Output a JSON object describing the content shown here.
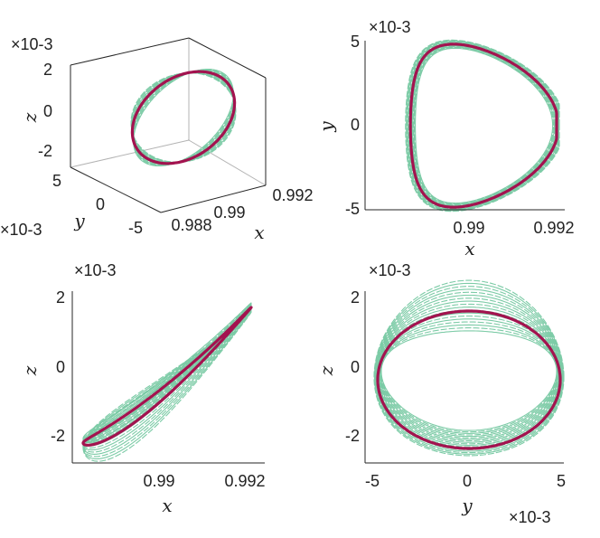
{
  "colors": {
    "background": "#ffffff",
    "axis": "#262626",
    "bundle": "#7ccba6",
    "periodic": "#a3134f"
  },
  "chart_data": [
    {
      "id": "xyz",
      "type": "line",
      "projection": "3d",
      "xlabel": "x",
      "ylabel": "y",
      "zlabel": "z",
      "xlim": [
        0.9875,
        0.9925
      ],
      "ylim": [
        -0.005,
        0.005
      ],
      "zlim": [
        -0.0025,
        0.0025
      ],
      "xticks": [
        0.988,
        0.99,
        0.992
      ],
      "xticklabels": [
        "0.988",
        "0.99",
        "0.992"
      ],
      "yticks": [
        -0.005,
        0,
        0.005
      ],
      "yticklabels": [
        "-5",
        "0",
        "5"
      ],
      "ymultiplier": "×10-3",
      "zticks": [
        -0.002,
        0,
        0.002
      ],
      "zticklabels": [
        "-2",
        "0",
        "2"
      ],
      "zmultiplier": "×10-3"
    },
    {
      "id": "xy",
      "type": "line",
      "xlabel": "x",
      "ylabel": "y",
      "xlim": [
        0.9885,
        0.9922
      ],
      "ylim": [
        -0.005,
        0.005
      ],
      "xticks": [
        0.99,
        0.992
      ],
      "xticklabels": [
        "0.99",
        "0.992"
      ],
      "yticks": [
        -0.005,
        0,
        0.005
      ],
      "yticklabels": [
        "-5",
        "0",
        "5"
      ],
      "ymultiplier": "×10-3"
    },
    {
      "id": "xz",
      "type": "line",
      "xlabel": "x",
      "ylabel": "z",
      "xlim": [
        0.9885,
        0.9922
      ],
      "ylim": [
        -0.0028,
        0.0022
      ],
      "xticks": [
        0.99,
        0.992
      ],
      "xticklabels": [
        "0.99",
        "0.992"
      ],
      "yticks": [
        -0.002,
        0,
        0.002
      ],
      "yticklabels": [
        "-2",
        "0",
        "2"
      ],
      "ymultiplier": "×10-3"
    },
    {
      "id": "yz",
      "type": "line",
      "xlabel": "y",
      "ylabel": "z",
      "xlim": [
        -0.0055,
        0.0052
      ],
      "ylim": [
        -0.0028,
        0.0022
      ],
      "xticks": [
        -0.005,
        0,
        0.005
      ],
      "xticklabels": [
        "-5",
        "0",
        "5"
      ],
      "xmultiplier": "×10-3",
      "yticks": [
        -0.002,
        0,
        0.002
      ],
      "yticklabels": [
        "-2",
        "0",
        "2"
      ],
      "ymultiplier": "×10-3"
    }
  ]
}
